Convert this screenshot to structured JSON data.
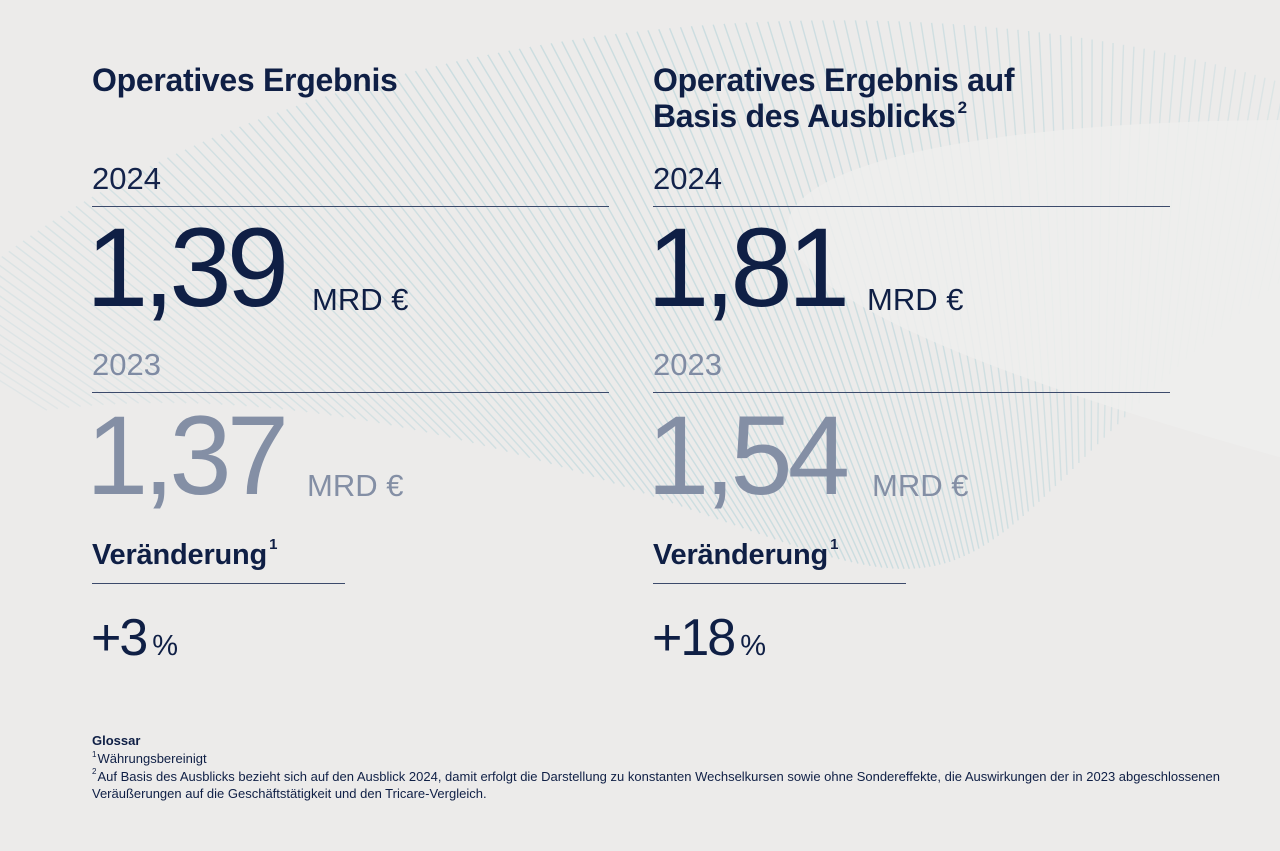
{
  "colors": {
    "background": "#ecebea",
    "navy": "#0f1f45",
    "muted": "#848fa5",
    "decoration_lines": "#a9cfd6"
  },
  "left": {
    "title": "Operatives Ergebnis",
    "year_current": "2024",
    "value_current": "1,39",
    "unit_current": "MRD €",
    "year_previous": "2023",
    "value_previous": "1,37",
    "unit_previous": "MRD €",
    "change_label": "Veränderung",
    "change_label_footnote": "1",
    "change_value": "+3",
    "change_unit": "%"
  },
  "right": {
    "title_line1": "Operatives Ergebnis auf",
    "title_line2": "Basis des Ausblicks",
    "title_footnote": "2",
    "year_current": "2024",
    "value_current": "1,81",
    "unit_current": "MRD €",
    "year_previous": "2023",
    "value_previous": "1,54",
    "unit_previous": "MRD €",
    "change_label": "Veränderung",
    "change_label_footnote": "1",
    "change_value": "+18",
    "change_unit": "%"
  },
  "glossary": {
    "title": "Glossar",
    "note1_marker": "1",
    "note1_text": "Währungsbereinigt",
    "note2_marker": "2",
    "note2_text": "Auf Basis des Ausblicks bezieht sich auf den Ausblick 2024, damit erfolgt die Darstellung zu konstanten Wechselkursen sowie ohne Sondereffekte, die Auswirkungen der in 2023 abgeschlossenen Veräußerungen auf die Geschäftstätigkeit und den Tricare-Vergleich."
  }
}
